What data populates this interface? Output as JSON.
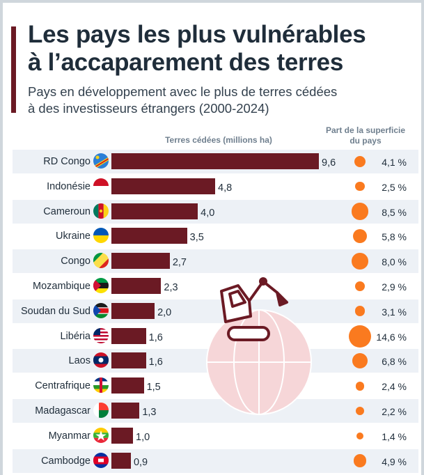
{
  "title_line1": "Les pays les plus vulnérables",
  "title_line2": "à l’accaparement des terres",
  "subtitle_line1": "Pays en développement avec le plus de terres cédées",
  "subtitle_line2": "à des investisseurs étrangers (2000-2024)",
  "colors": {
    "bar": "#6b1a24",
    "dot": "#fa7a1f",
    "band": "#edf1f6",
    "globe": "#f6d6d8"
  },
  "chart_data": {
    "type": "bar",
    "orientation": "horizontal",
    "title": "Les pays les plus vulnérables à l’accaparement des terres",
    "bar_axis_label": "Terres cédées (millions ha)",
    "share_label_line1": "Part de la superficie",
    "share_label_line2": "du pays",
    "xlim": [
      0,
      9.6
    ],
    "categories": [
      "RD Congo",
      "Indonésie",
      "Cameroun",
      "Ukraine",
      "Congo",
      "Mozambique",
      "Soudan du Sud",
      "Libéria",
      "Laos",
      "Centrafrique",
      "Madagascar",
      "Myanmar",
      "Cambodge"
    ],
    "values": [
      9.6,
      4.8,
      4.0,
      3.5,
      2.7,
      2.3,
      2.0,
      1.6,
      1.6,
      1.5,
      1.3,
      1.0,
      0.9
    ],
    "value_labels": [
      "9,6",
      "4,8",
      "4,0",
      "3,5",
      "2,7",
      "2,3",
      "2,0",
      "1,6",
      "1,6",
      "1,5",
      "1,3",
      "1,0",
      "0,9"
    ],
    "share_values": [
      4.1,
      2.5,
      8.5,
      5.8,
      8.0,
      2.9,
      3.1,
      14.6,
      6.8,
      2.4,
      2.2,
      1.4,
      4.9
    ],
    "share_labels": [
      "4,1 %",
      "2,5 %",
      "8,5 %",
      "5,8 %",
      "8,0 %",
      "2,9 %",
      "3,1 %",
      "14,6 %",
      "6,8 %",
      "2,4 %",
      "2,2 %",
      "1,4 %",
      "4,9 %"
    ],
    "flag_icons": [
      "flag-drc-icon",
      "flag-indonesia-icon",
      "flag-cameroon-icon",
      "flag-ukraine-icon",
      "flag-congo-icon",
      "flag-mozambique-icon",
      "flag-south-sudan-icon",
      "flag-liberia-icon",
      "flag-laos-icon",
      "flag-car-icon",
      "flag-madagascar-icon",
      "flag-myanmar-icon",
      "flag-cambodia-icon"
    ]
  }
}
